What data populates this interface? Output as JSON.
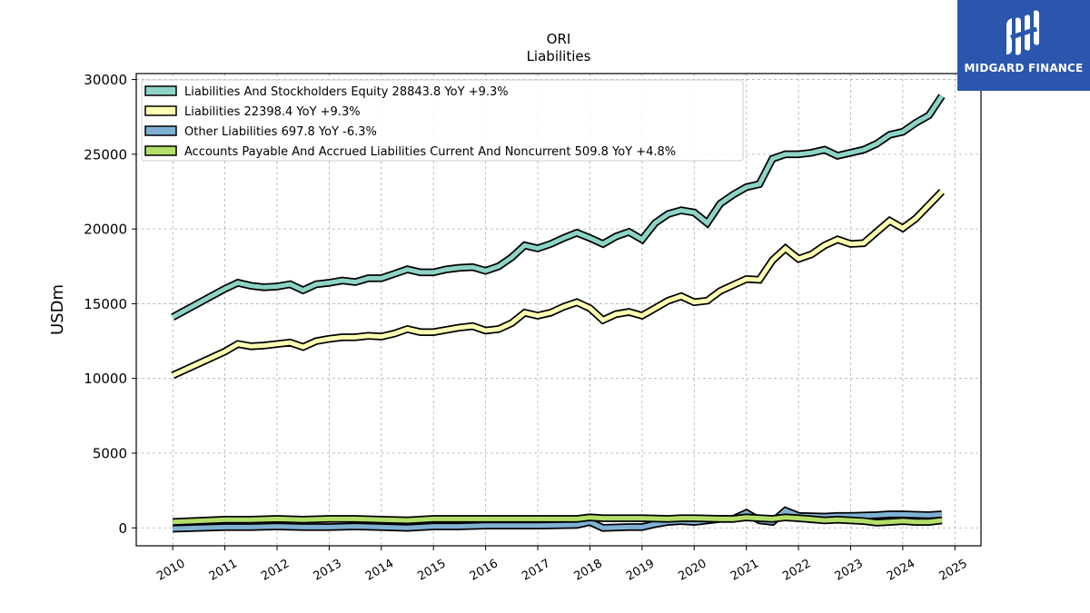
{
  "chart_data": {
    "type": "line",
    "title": "ORI",
    "subtitle": "Liabilities",
    "xlabel": "",
    "ylabel": "USDm",
    "xlim": [
      2009.3,
      2025.5
    ],
    "ylim": [
      -1200,
      30400
    ],
    "yticks": [
      0,
      5000,
      10000,
      15000,
      20000,
      25000,
      30000
    ],
    "xticks": [
      2010,
      2011,
      2012,
      2013,
      2014,
      2015,
      2016,
      2017,
      2018,
      2019,
      2020,
      2021,
      2022,
      2023,
      2024,
      2025
    ],
    "grid": true,
    "legend_position": "top-left",
    "series": [
      {
        "name": "Liabilities And Stockholders Equity",
        "legend": "Liabilities And Stockholders Equity  28843.8 YoY +9.3%",
        "color": "#8dd3c7",
        "points": [
          [
            2010.0,
            14100
          ],
          [
            2011.0,
            16000
          ],
          [
            2011.25,
            16400
          ],
          [
            2011.5,
            16200
          ],
          [
            2011.75,
            16100
          ],
          [
            2012.0,
            16150
          ],
          [
            2012.25,
            16300
          ],
          [
            2012.5,
            15900
          ],
          [
            2012.75,
            16300
          ],
          [
            2013.0,
            16400
          ],
          [
            2013.25,
            16550
          ],
          [
            2013.5,
            16450
          ],
          [
            2013.75,
            16700
          ],
          [
            2014.0,
            16700
          ],
          [
            2014.25,
            17000
          ],
          [
            2014.5,
            17300
          ],
          [
            2014.75,
            17100
          ],
          [
            2015.0,
            17100
          ],
          [
            2015.25,
            17300
          ],
          [
            2015.5,
            17400
          ],
          [
            2015.75,
            17450
          ],
          [
            2016.0,
            17200
          ],
          [
            2016.25,
            17500
          ],
          [
            2016.5,
            18100
          ],
          [
            2016.75,
            18900
          ],
          [
            2017.0,
            18700
          ],
          [
            2017.25,
            19000
          ],
          [
            2017.5,
            19400
          ],
          [
            2017.75,
            19750
          ],
          [
            2018.0,
            19400
          ],
          [
            2018.25,
            19000
          ],
          [
            2018.5,
            19500
          ],
          [
            2018.75,
            19800
          ],
          [
            2019.0,
            19300
          ],
          [
            2019.25,
            20400
          ],
          [
            2019.5,
            21000
          ],
          [
            2019.75,
            21250
          ],
          [
            2020.0,
            21100
          ],
          [
            2020.25,
            20400
          ],
          [
            2020.5,
            21700
          ],
          [
            2020.75,
            22300
          ],
          [
            2021.0,
            22800
          ],
          [
            2021.25,
            23000
          ],
          [
            2021.5,
            24700
          ],
          [
            2021.75,
            25000
          ],
          [
            2022.0,
            25000
          ],
          [
            2022.25,
            25100
          ],
          [
            2022.5,
            25300
          ],
          [
            2022.75,
            24900
          ],
          [
            2023.0,
            25100
          ],
          [
            2023.25,
            25300
          ],
          [
            2023.5,
            25700
          ],
          [
            2023.75,
            26300
          ],
          [
            2024.0,
            26500
          ],
          [
            2024.25,
            27100
          ],
          [
            2024.5,
            27600
          ],
          [
            2024.75,
            28900
          ]
        ]
      },
      {
        "name": "Liabilities",
        "legend": "Liabilities  22398.4 YoY +9.3%",
        "color": "#ffffb3",
        "points": [
          [
            2010.0,
            10200
          ],
          [
            2011.0,
            11800
          ],
          [
            2011.25,
            12300
          ],
          [
            2011.5,
            12150
          ],
          [
            2011.75,
            12200
          ],
          [
            2012.0,
            12300
          ],
          [
            2012.25,
            12400
          ],
          [
            2012.5,
            12100
          ],
          [
            2012.75,
            12500
          ],
          [
            2013.0,
            12650
          ],
          [
            2013.25,
            12750
          ],
          [
            2013.5,
            12750
          ],
          [
            2013.75,
            12850
          ],
          [
            2014.0,
            12800
          ],
          [
            2014.25,
            13000
          ],
          [
            2014.5,
            13300
          ],
          [
            2014.75,
            13100
          ],
          [
            2015.0,
            13100
          ],
          [
            2015.25,
            13250
          ],
          [
            2015.5,
            13400
          ],
          [
            2015.75,
            13500
          ],
          [
            2016.0,
            13200
          ],
          [
            2016.25,
            13300
          ],
          [
            2016.5,
            13700
          ],
          [
            2016.75,
            14400
          ],
          [
            2017.0,
            14200
          ],
          [
            2017.25,
            14400
          ],
          [
            2017.5,
            14800
          ],
          [
            2017.75,
            15100
          ],
          [
            2018.0,
            14700
          ],
          [
            2018.25,
            13900
          ],
          [
            2018.5,
            14300
          ],
          [
            2018.75,
            14450
          ],
          [
            2019.0,
            14200
          ],
          [
            2019.25,
            14700
          ],
          [
            2019.5,
            15200
          ],
          [
            2019.75,
            15500
          ],
          [
            2020.0,
            15100
          ],
          [
            2020.25,
            15200
          ],
          [
            2020.5,
            15850
          ],
          [
            2020.75,
            16250
          ],
          [
            2021.0,
            16650
          ],
          [
            2021.25,
            16600
          ],
          [
            2021.5,
            17900
          ],
          [
            2021.75,
            18700
          ],
          [
            2022.0,
            18000
          ],
          [
            2022.25,
            18300
          ],
          [
            2022.5,
            18900
          ],
          [
            2022.75,
            19300
          ],
          [
            2023.0,
            19000
          ],
          [
            2023.25,
            19050
          ],
          [
            2023.5,
            19800
          ],
          [
            2023.75,
            20550
          ],
          [
            2024.0,
            20050
          ],
          [
            2024.25,
            20700
          ],
          [
            2024.5,
            21600
          ],
          [
            2024.75,
            22500
          ]
        ]
      },
      {
        "name": "Other Liabilities",
        "legend": "Other Liabilities  697.8 YoY -6.3%",
        "color": "#80b1d3",
        "points": [
          [
            2010.0,
            -50
          ],
          [
            2011.0,
            50
          ],
          [
            2011.5,
            50
          ],
          [
            2012.0,
            100
          ],
          [
            2012.5,
            50
          ],
          [
            2013.0,
            50
          ],
          [
            2013.5,
            100
          ],
          [
            2014.0,
            50
          ],
          [
            2014.5,
            0
          ],
          [
            2015.0,
            100
          ],
          [
            2015.5,
            100
          ],
          [
            2016.0,
            150
          ],
          [
            2016.5,
            150
          ],
          [
            2017.0,
            150
          ],
          [
            2017.75,
            200
          ],
          [
            2018.0,
            400
          ],
          [
            2018.25,
            0
          ],
          [
            2018.75,
            50
          ],
          [
            2019.0,
            50
          ],
          [
            2019.25,
            250
          ],
          [
            2019.5,
            400
          ],
          [
            2019.75,
            450
          ],
          [
            2020.0,
            400
          ],
          [
            2020.5,
            600
          ],
          [
            2020.75,
            600
          ],
          [
            2021.0,
            1000
          ],
          [
            2021.25,
            500
          ],
          [
            2021.5,
            400
          ],
          [
            2021.75,
            1150
          ],
          [
            2022.0,
            800
          ],
          [
            2022.5,
            750
          ],
          [
            2022.75,
            800
          ],
          [
            2023.0,
            800
          ],
          [
            2023.5,
            850
          ],
          [
            2023.75,
            900
          ],
          [
            2024.0,
            900
          ],
          [
            2024.5,
            850
          ],
          [
            2024.75,
            900
          ]
        ]
      },
      {
        "name": "Accounts Payable And Accrued Liabilities Current And Noncurrent",
        "legend": "Accounts Payable And Accrued Liabilities Current And Noncurrent  509.8 YoY +4.8%",
        "color": "#b3de69",
        "points": [
          [
            2010.0,
            400
          ],
          [
            2011.0,
            550
          ],
          [
            2011.5,
            550
          ],
          [
            2012.0,
            600
          ],
          [
            2012.5,
            550
          ],
          [
            2013.0,
            600
          ],
          [
            2013.5,
            600
          ],
          [
            2014.0,
            550
          ],
          [
            2014.5,
            500
          ],
          [
            2015.0,
            600
          ],
          [
            2015.5,
            600
          ],
          [
            2016.0,
            600
          ],
          [
            2016.5,
            600
          ],
          [
            2017.0,
            600
          ],
          [
            2017.5,
            600
          ],
          [
            2017.75,
            600
          ],
          [
            2018.0,
            700
          ],
          [
            2018.25,
            650
          ],
          [
            2018.75,
            650
          ],
          [
            2019.0,
            650
          ],
          [
            2019.5,
            600
          ],
          [
            2019.75,
            650
          ],
          [
            2020.0,
            650
          ],
          [
            2020.5,
            600
          ],
          [
            2020.75,
            600
          ],
          [
            2021.0,
            700
          ],
          [
            2021.25,
            650
          ],
          [
            2021.5,
            600
          ],
          [
            2021.75,
            700
          ],
          [
            2022.0,
            650
          ],
          [
            2022.5,
            500
          ],
          [
            2022.75,
            550
          ],
          [
            2023.0,
            500
          ],
          [
            2023.25,
            450
          ],
          [
            2023.5,
            350
          ],
          [
            2023.75,
            400
          ],
          [
            2024.0,
            450
          ],
          [
            2024.25,
            400
          ],
          [
            2024.5,
            400
          ],
          [
            2024.75,
            500
          ]
        ]
      }
    ]
  },
  "logo": {
    "text": "MIDGARD FINANCE",
    "icon": "midgard-finance-logo-icon",
    "color": "#2a57ad"
  }
}
